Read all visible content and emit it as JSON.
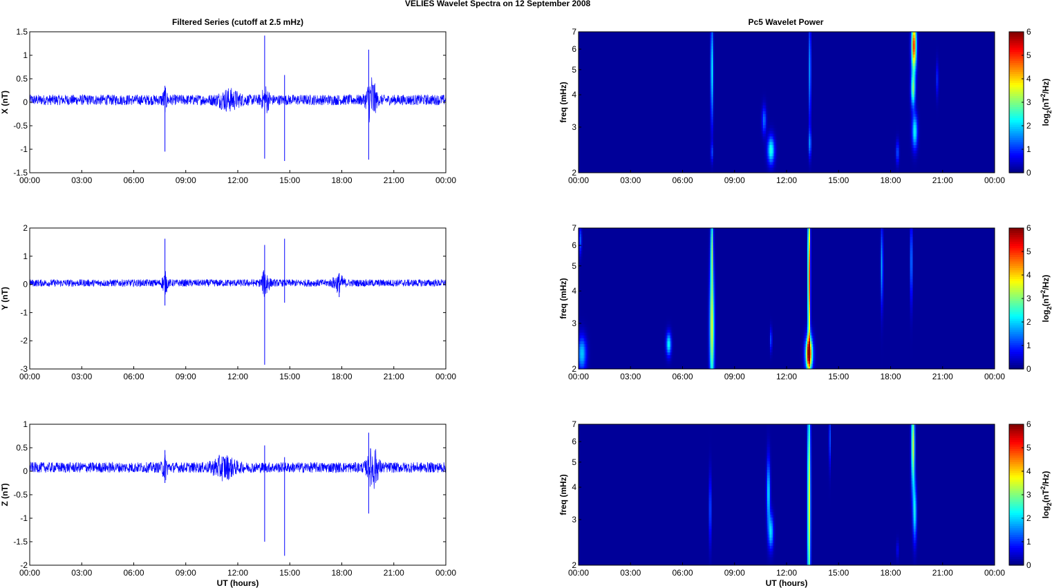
{
  "figure": {
    "title": "VELIES Wavelet Spectra on 12 September 2008",
    "left_title": "Filtered Series (cutoff at 2.5 mHz)",
    "right_title": "Pc5 Wavelet Power",
    "x_label": "UT (hours)",
    "freq_label": "freq (mHz)",
    "colorbar_label": "log2(nT2/Hz)"
  },
  "colors": {
    "trace": "#0000ff"
  },
  "chart_data": [
    {
      "type": "line",
      "panel": "X",
      "title": "Filtered Series (cutoff at 2.5 mHz)",
      "ylabel": "X (nT)",
      "xlabel": "",
      "xlim": [
        0,
        24
      ],
      "ylim": [
        -1.5,
        1.5
      ],
      "x_tick_labels": [
        "00:00",
        "03:00",
        "06:00",
        "09:00",
        "12:00",
        "15:00",
        "18:00",
        "21:00",
        "00:00"
      ],
      "y_ticks": [
        -1.5,
        -1,
        -0.5,
        0,
        0.5,
        1,
        1.5
      ],
      "y_tick_labels": [
        "-1.5",
        "-1",
        "-0.5",
        "0",
        "0.5",
        "1",
        "1.5"
      ],
      "baseline": 0.05,
      "noise": 0.07,
      "bursts": [
        {
          "t": 11.5,
          "w": 0.6,
          "a": 0.1
        },
        {
          "t": 19.7,
          "w": 0.25,
          "a": 0.3
        },
        {
          "t": 7.8,
          "w": 0.15,
          "a": 0.1
        },
        {
          "t": 13.6,
          "w": 0.2,
          "a": 0.15
        }
      ],
      "spikes": [
        {
          "t": 7.8,
          "min": -1.05,
          "max": 0.35
        },
        {
          "t": 13.55,
          "min": -1.2,
          "max": 1.42
        },
        {
          "t": 14.7,
          "min": -1.25,
          "max": 0.58
        },
        {
          "t": 19.55,
          "min": -1.22,
          "max": 1.12
        }
      ]
    },
    {
      "type": "heatmap",
      "panel": "X power",
      "title": "Pc5 Wavelet Power",
      "ylabel": "freq (mHz)",
      "xlabel": "",
      "xlim": [
        0,
        24
      ],
      "ylim": [
        2,
        7
      ],
      "y_scale": "log",
      "x_tick_labels": [
        "00:00",
        "03:00",
        "06:00",
        "09:00",
        "12:00",
        "15:00",
        "18:00",
        "21:00",
        "00:00"
      ],
      "y_ticks": [
        2,
        3,
        4,
        5,
        6,
        7
      ],
      "y_tick_labels": [
        "2",
        "3",
        "4",
        "5",
        "6",
        "7"
      ],
      "colorbar_ticks": [
        0,
        1,
        2,
        3,
        4,
        5,
        6
      ],
      "colorbar_tick_labels": [
        "0",
        "1",
        "2",
        "3",
        "4",
        "5",
        "6"
      ],
      "colorbar_label": "log2(nT2/Hz)",
      "clim": [
        0,
        6
      ],
      "background": 0.15,
      "blobs": [
        {
          "t": 7.7,
          "f": 5.0,
          "tw": 0.07,
          "fw": 0.45,
          "v": 2.3
        },
        {
          "t": 7.7,
          "f": 2.4,
          "tw": 0.06,
          "fw": 0.08,
          "v": 1.0
        },
        {
          "t": 10.7,
          "f": 3.2,
          "tw": 0.12,
          "fw": 0.12,
          "v": 1.3
        },
        {
          "t": 11.1,
          "f": 2.45,
          "tw": 0.2,
          "fw": 0.12,
          "v": 2.3
        },
        {
          "t": 13.35,
          "f": 5.0,
          "tw": 0.06,
          "fw": 0.45,
          "v": 1.8
        },
        {
          "t": 13.35,
          "f": 2.6,
          "tw": 0.07,
          "fw": 0.12,
          "v": 1.5
        },
        {
          "t": 19.35,
          "f": 6.2,
          "tw": 0.14,
          "fw": 0.22,
          "v": 5.0
        },
        {
          "t": 19.3,
          "f": 4.2,
          "tw": 0.12,
          "fw": 0.15,
          "v": 2.8
        },
        {
          "t": 19.4,
          "f": 2.9,
          "tw": 0.15,
          "fw": 0.15,
          "v": 2.2
        },
        {
          "t": 18.4,
          "f": 2.4,
          "tw": 0.08,
          "fw": 0.1,
          "v": 1.2
        },
        {
          "t": 20.7,
          "f": 4.6,
          "tw": 0.06,
          "fw": 0.15,
          "v": 0.9
        }
      ]
    },
    {
      "type": "line",
      "panel": "Y",
      "title": "",
      "ylabel": "Y (nT)",
      "xlabel": "",
      "xlim": [
        0,
        24
      ],
      "ylim": [
        -3,
        2
      ],
      "x_tick_labels": [
        "00:00",
        "03:00",
        "06:00",
        "09:00",
        "12:00",
        "15:00",
        "18:00",
        "21:00",
        "00:00"
      ],
      "y_ticks": [
        -3,
        -2,
        -1,
        0,
        1,
        2
      ],
      "y_tick_labels": [
        "-3",
        "-2",
        "-1",
        "0",
        "1",
        "2"
      ],
      "baseline": 0.05,
      "noise": 0.08,
      "bursts": [
        {
          "t": 7.8,
          "w": 0.15,
          "a": 0.2
        },
        {
          "t": 13.6,
          "w": 0.2,
          "a": 0.3
        },
        {
          "t": 17.8,
          "w": 0.3,
          "a": 0.15
        }
      ],
      "spikes": [
        {
          "t": 7.8,
          "min": -0.75,
          "max": 1.62
        },
        {
          "t": 13.55,
          "min": -2.85,
          "max": 1.4
        },
        {
          "t": 14.7,
          "min": -0.65,
          "max": 1.62
        },
        {
          "t": 17.85,
          "min": -0.45,
          "max": 0.4
        }
      ]
    },
    {
      "type": "heatmap",
      "panel": "Y power",
      "title": "",
      "ylabel": "freq (mHz)",
      "xlabel": "",
      "xlim": [
        0,
        24
      ],
      "ylim": [
        2,
        7
      ],
      "y_scale": "log",
      "x_tick_labels": [
        "00:00",
        "03:00",
        "06:00",
        "09:00",
        "12:00",
        "15:00",
        "18:00",
        "21:00",
        "00:00"
      ],
      "y_ticks": [
        2,
        3,
        4,
        5,
        6,
        7
      ],
      "y_tick_labels": [
        "2",
        "3",
        "4",
        "5",
        "6",
        "7"
      ],
      "colorbar_ticks": [
        0,
        1,
        2,
        3,
        4,
        5,
        6
      ],
      "colorbar_tick_labels": [
        "0",
        "1",
        "2",
        "3",
        "4",
        "5",
        "6"
      ],
      "colorbar_label": "log2(nT2/Hz)",
      "clim": [
        0,
        6
      ],
      "background": 0.15,
      "blobs": [
        {
          "t": 0.2,
          "f": 2.3,
          "tw": 0.25,
          "fw": 0.15,
          "v": 1.8
        },
        {
          "t": 0.1,
          "f": 6.3,
          "tw": 0.08,
          "fw": 0.12,
          "v": 1.2
        },
        {
          "t": 5.2,
          "f": 2.5,
          "tw": 0.14,
          "fw": 0.1,
          "v": 2.2
        },
        {
          "t": 7.7,
          "f": 2.9,
          "tw": 0.13,
          "fw": 0.55,
          "v": 3.5
        },
        {
          "t": 7.7,
          "f": 6.0,
          "tw": 0.07,
          "fw": 0.35,
          "v": 2.5
        },
        {
          "t": 11.1,
          "f": 2.6,
          "tw": 0.06,
          "fw": 0.1,
          "v": 1.1
        },
        {
          "t": 13.3,
          "f": 2.3,
          "tw": 0.2,
          "fw": 0.15,
          "v": 5.2
        },
        {
          "t": 13.3,
          "f": 4.5,
          "tw": 0.07,
          "fw": 0.7,
          "v": 5.0
        },
        {
          "t": 17.5,
          "f": 5.0,
          "tw": 0.06,
          "fw": 0.35,
          "v": 1.8
        },
        {
          "t": 19.2,
          "f": 5.2,
          "tw": 0.06,
          "fw": 0.35,
          "v": 1.7
        }
      ]
    },
    {
      "type": "line",
      "panel": "Z",
      "title": "",
      "ylabel": "Z (nT)",
      "xlabel": "UT (hours)",
      "xlim": [
        0,
        24
      ],
      "ylim": [
        -2,
        1
      ],
      "x_tick_labels": [
        "00:00",
        "03:00",
        "06:00",
        "09:00",
        "12:00",
        "15:00",
        "18:00",
        "21:00",
        "00:00"
      ],
      "y_ticks": [
        -2,
        -1.5,
        -1,
        -0.5,
        0,
        0.5,
        1
      ],
      "y_tick_labels": [
        "-2",
        "-1.5",
        "-1",
        "-0.5",
        "0",
        "0.5",
        "1"
      ],
      "baseline": 0.08,
      "noise": 0.07,
      "bursts": [
        {
          "t": 11.2,
          "w": 0.6,
          "a": 0.12
        },
        {
          "t": 19.8,
          "w": 0.3,
          "a": 0.25
        },
        {
          "t": 7.8,
          "w": 0.15,
          "a": 0.12
        }
      ],
      "spikes": [
        {
          "t": 7.8,
          "min": -0.25,
          "max": 0.45
        },
        {
          "t": 13.55,
          "min": -1.5,
          "max": 0.55
        },
        {
          "t": 14.7,
          "min": -1.8,
          "max": 0.3
        },
        {
          "t": 19.55,
          "min": -0.9,
          "max": 0.82
        }
      ]
    },
    {
      "type": "heatmap",
      "panel": "Z power",
      "title": "",
      "ylabel": "freq (mHz)",
      "xlabel": "UT (hours)",
      "xlim": [
        0,
        24
      ],
      "ylim": [
        2,
        7
      ],
      "y_scale": "log",
      "x_tick_labels": [
        "00:00",
        "03:00",
        "06:00",
        "09:00",
        "12:00",
        "15:00",
        "18:00",
        "21:00",
        "00:00"
      ],
      "y_ticks": [
        2,
        3,
        4,
        5,
        6,
        7
      ],
      "y_tick_labels": [
        "2",
        "3",
        "4",
        "5",
        "6",
        "7"
      ],
      "colorbar_ticks": [
        0,
        1,
        2,
        3,
        4,
        5,
        6
      ],
      "colorbar_tick_labels": [
        "0",
        "1",
        "2",
        "3",
        "4",
        "5",
        "6"
      ],
      "colorbar_label": "log2(nT2/Hz)",
      "clim": [
        0,
        6
      ],
      "background": 0.15,
      "blobs": [
        {
          "t": 7.6,
          "f": 3.3,
          "tw": 0.06,
          "fw": 0.3,
          "v": 1.4
        },
        {
          "t": 10.95,
          "f": 3.8,
          "tw": 0.1,
          "fw": 0.3,
          "v": 2.0
        },
        {
          "t": 11.1,
          "f": 2.7,
          "tw": 0.14,
          "fw": 0.15,
          "v": 1.9
        },
        {
          "t": 13.3,
          "f": 3.5,
          "tw": 0.09,
          "fw": 1.0,
          "v": 3.6
        },
        {
          "t": 14.5,
          "f": 6.2,
          "tw": 0.05,
          "fw": 0.25,
          "v": 1.2
        },
        {
          "t": 19.3,
          "f": 5.8,
          "tw": 0.1,
          "fw": 0.4,
          "v": 3.4
        },
        {
          "t": 19.4,
          "f": 3.2,
          "tw": 0.1,
          "fw": 0.25,
          "v": 2.1
        },
        {
          "t": 18.4,
          "f": 2.3,
          "tw": 0.05,
          "fw": 0.08,
          "v": 0.8
        }
      ]
    }
  ]
}
